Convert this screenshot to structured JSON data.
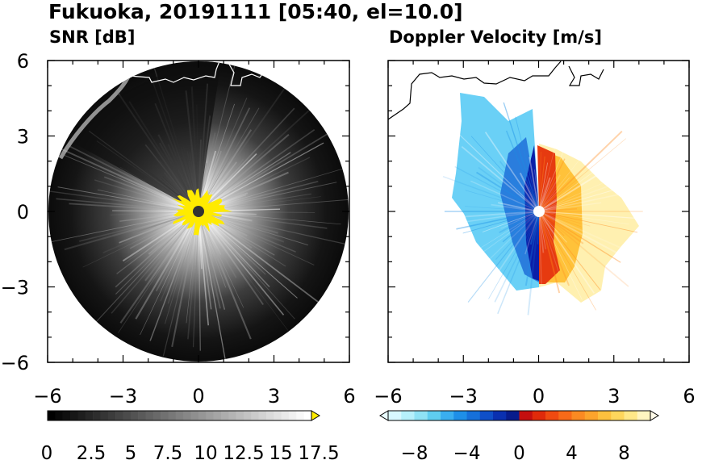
{
  "figure": {
    "title": "Fukuoka, 20191111 [05:40, el=10.0]"
  },
  "panels": [
    {
      "title": "SNR [dB]",
      "colorbar_ticks": [
        "0",
        "2.5",
        "5",
        "7.5",
        "10",
        "12.5",
        "15",
        "17.5"
      ]
    },
    {
      "title": "Doppler Velocity [m/s]",
      "colorbar_ticks": [
        "−8",
        "−4",
        "0",
        "4",
        "8"
      ]
    }
  ],
  "axis": {
    "x_ticks": [
      "−6",
      "−3",
      "0",
      "3",
      "6"
    ],
    "y_ticks": [
      "6",
      "3",
      "0",
      "−3",
      "−6"
    ]
  },
  "chart_data": [
    {
      "type": "heatmap",
      "title": "SNR [dB]",
      "xlim": [
        -6,
        6
      ],
      "ylim": [
        -6,
        6
      ],
      "xticks": [
        -6,
        -3,
        0,
        3,
        6
      ],
      "yticks": [
        -6,
        -3,
        0,
        3,
        6
      ],
      "color_range": [
        0,
        17.5
      ],
      "colorbar_extend": "max",
      "colormap": "grayscale (black to white), saturated values in yellow",
      "saturated_color": "#ffeb00",
      "max_range": 6
    },
    {
      "type": "heatmap",
      "title": "Doppler Velocity [m/s]",
      "xlim": [
        -6,
        6
      ],
      "ylim": [
        -6,
        6
      ],
      "xticks": [
        -6,
        -3,
        0,
        3,
        6
      ],
      "yticks": [
        -6,
        -3,
        0,
        3,
        6
      ],
      "color_range": [
        -10,
        10
      ],
      "colorbar_extend": "both",
      "colormap": "light cyan to blue (negative), red to orange to pale yellow (positive)"
    }
  ]
}
